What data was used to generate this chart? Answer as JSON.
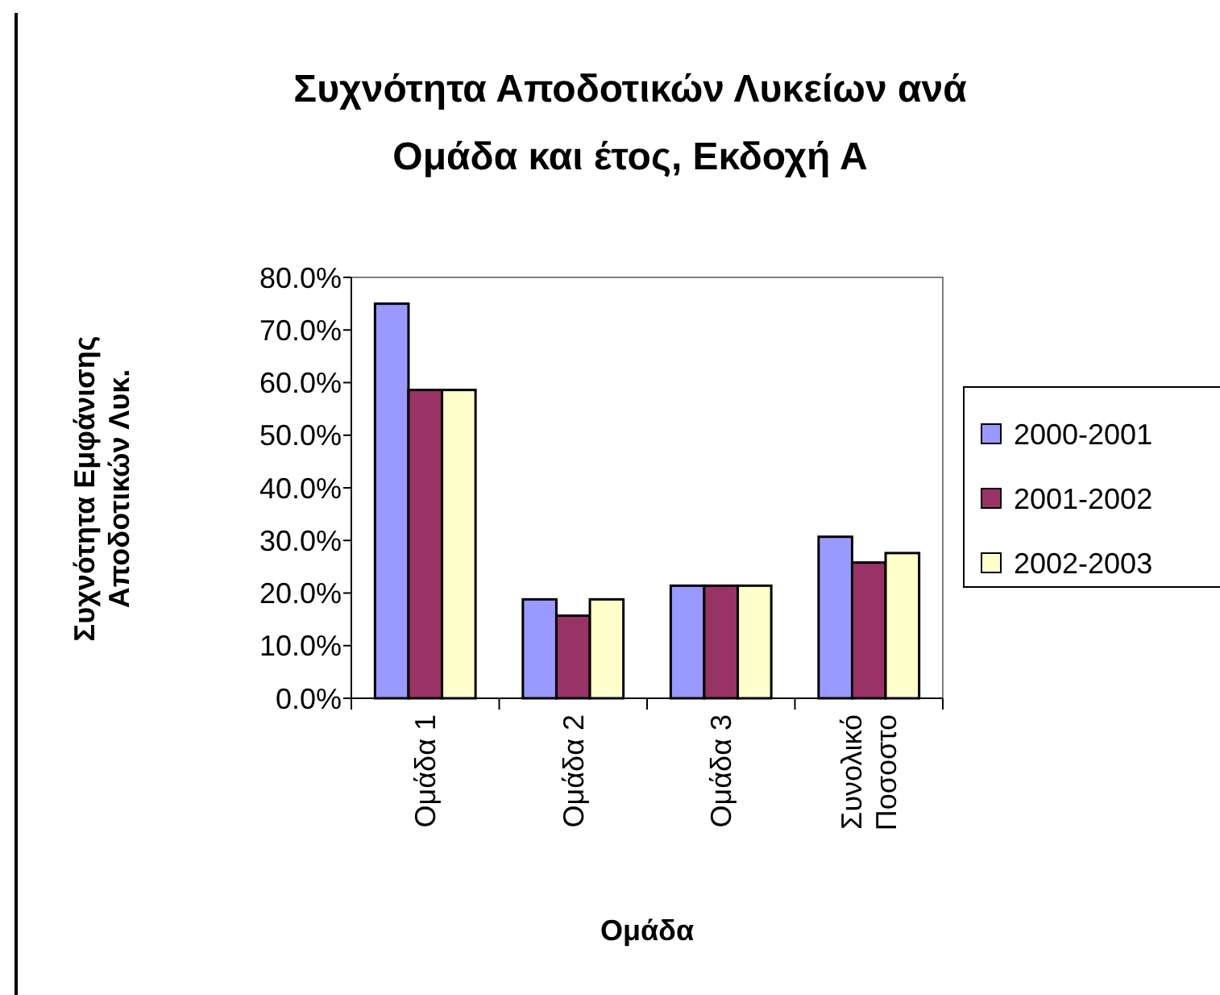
{
  "chart_data": {
    "type": "bar",
    "title": "Συχνότητα Αποδοτικών Λυκείων ανά Ομάδα και έτος, Εκδοχή Α",
    "xlabel": "Ομάδα",
    "ylabel": "Συχνότητα Εμφάνισης Αποδοτικών Λυκ.",
    "categories": [
      "Ομάδα 1",
      "Ομάδα 2",
      "Ομάδα 3",
      "Συνολικό Ποσοστο"
    ],
    "series": [
      {
        "name": "2000-2001",
        "color": "#9999ff",
        "values": [
          75.0,
          18.8,
          21.4,
          30.7
        ]
      },
      {
        "name": "2001-2002",
        "color": "#993366",
        "values": [
          58.6,
          15.7,
          21.4,
          25.8
        ]
      },
      {
        "name": "2002-2003",
        "color": "#ffffcc",
        "values": [
          58.6,
          18.8,
          21.4,
          27.6
        ]
      }
    ],
    "ylim": [
      0,
      80
    ],
    "yticks": [
      {
        "value": 0,
        "label": "0.0%"
      },
      {
        "value": 10,
        "label": "10.0%"
      },
      {
        "value": 20,
        "label": "20.0%"
      },
      {
        "value": 30,
        "label": "30.0%"
      },
      {
        "value": 40,
        "label": "40.0%"
      },
      {
        "value": 50,
        "label": "50.0%"
      },
      {
        "value": 60,
        "label": "60.0%"
      },
      {
        "value": 70,
        "label": "70.0%"
      },
      {
        "value": 80,
        "label": "80.0%"
      }
    ],
    "grid": false,
    "legend": "right"
  }
}
